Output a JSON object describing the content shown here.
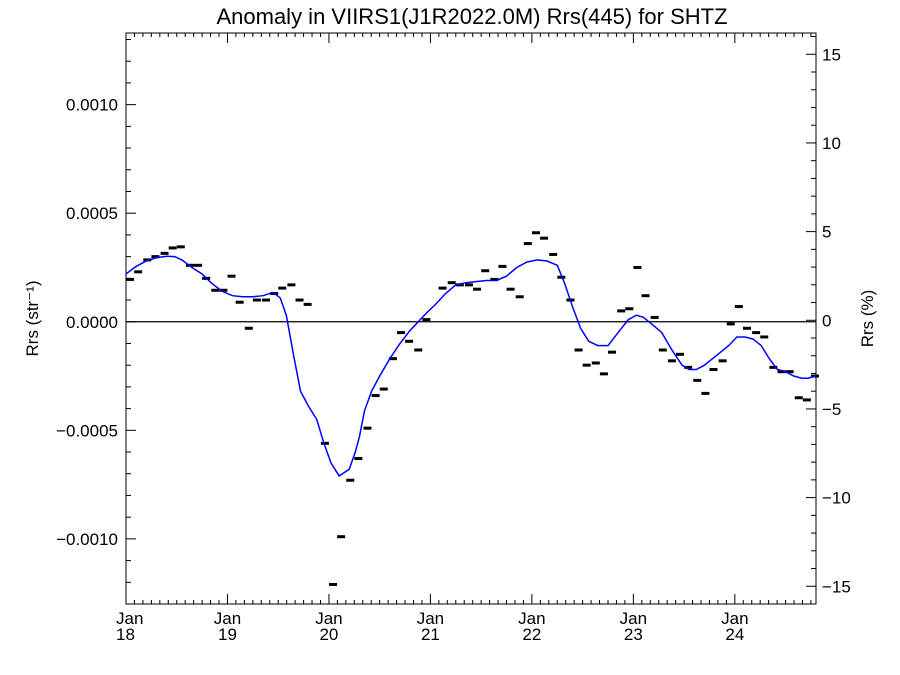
{
  "chart_data": {
    "type": "scatter",
    "title": "Anomaly in VIIRS1(J1R2022.0M) Rrs(445) for SHTZ",
    "ylabel_left": "Rrs (str⁻¹)",
    "ylabel_right": "Rrs (%)",
    "xlabel": "",
    "x_unit": "year",
    "xlim": [
      2018.0,
      2024.8
    ],
    "ylim_left": [
      -0.0013,
      0.00133
    ],
    "ylim_right": [
      -16,
      16.2
    ],
    "x_ticks": [
      {
        "value": 2018,
        "month": "Jan",
        "year": "18"
      },
      {
        "value": 2019,
        "month": "Jan",
        "year": "19"
      },
      {
        "value": 2020,
        "month": "Jan",
        "year": "20"
      },
      {
        "value": 2021,
        "month": "Jan",
        "year": "21"
      },
      {
        "value": 2022,
        "month": "Jan",
        "year": "22"
      },
      {
        "value": 2023,
        "month": "Jan",
        "year": "23"
      },
      {
        "value": 2024,
        "month": "Jan",
        "year": "24"
      }
    ],
    "y_ticks_left": [
      {
        "value": 0.001,
        "label": "0.0010"
      },
      {
        "value": 0.0005,
        "label": "0.0005"
      },
      {
        "value": 0.0,
        "label": "0.0000"
      },
      {
        "value": -0.0005,
        "label": "−0.0005"
      },
      {
        "value": -0.001,
        "label": "−0.0010"
      }
    ],
    "y_ticks_right": [
      {
        "value": 15,
        "label": "15"
      },
      {
        "value": 10,
        "label": "10"
      },
      {
        "value": 5,
        "label": "5"
      },
      {
        "value": 0,
        "label": "0"
      },
      {
        "value": -5,
        "label": "−5"
      },
      {
        "value": -10,
        "label": "−10"
      },
      {
        "value": -15,
        "label": "−15"
      }
    ],
    "zero_line": 0.0,
    "series": [
      {
        "kind": "points",
        "color": "#000000",
        "x": [
          2018.04,
          2018.12,
          2018.21,
          2018.29,
          2018.38,
          2018.46,
          2018.54,
          2018.63,
          2018.71,
          2018.79,
          2018.88,
          2018.96,
          2019.04,
          2019.12,
          2019.21,
          2019.29,
          2019.38,
          2019.46,
          2019.54,
          2019.63,
          2019.71,
          2019.79,
          2019.96,
          2020.04,
          2020.12,
          2020.21,
          2020.29,
          2020.38,
          2020.46,
          2020.54,
          2020.63,
          2020.71,
          2020.79,
          2020.88,
          2020.96,
          2021.12,
          2021.21,
          2021.29,
          2021.38,
          2021.46,
          2021.54,
          2021.63,
          2021.71,
          2021.79,
          2021.88,
          2021.96,
          2022.04,
          2022.12,
          2022.21,
          2022.29,
          2022.38,
          2022.46,
          2022.54,
          2022.63,
          2022.71,
          2022.79,
          2022.88,
          2022.96,
          2023.04,
          2023.12,
          2023.21,
          2023.29,
          2023.38,
          2023.46,
          2023.54,
          2023.63,
          2023.71,
          2023.79,
          2023.88,
          2023.96,
          2024.04,
          2024.12,
          2024.21,
          2024.29,
          2024.38,
          2024.46,
          2024.54,
          2024.63,
          2024.71,
          2024.79
        ],
        "y": [
          0.000195,
          0.00023,
          0.000285,
          0.0003,
          0.000315,
          0.00034,
          0.000345,
          0.00026,
          0.00026,
          0.0002,
          0.000145,
          0.000145,
          0.00021,
          9e-05,
          -3e-05,
          0.0001,
          0.0001,
          0.00013,
          0.000155,
          0.00017,
          0.0001,
          8e-05,
          -0.00056,
          -0.00121,
          -0.00099,
          -0.00073,
          -0.00063,
          -0.00049,
          -0.00034,
          -0.00031,
          -0.00017,
          -5e-05,
          -9e-05,
          -0.00013,
          1e-05,
          0.000155,
          0.00018,
          0.00017,
          0.00017,
          0.00015,
          0.000235,
          0.000195,
          0.000255,
          0.00015,
          0.000115,
          0.00036,
          0.00041,
          0.000385,
          0.00031,
          0.000205,
          0.0001,
          -0.00013,
          -0.0002,
          -0.00019,
          -0.00024,
          -0.00014,
          5e-05,
          6e-05,
          0.00025,
          0.00012,
          2e-05,
          -0.00013,
          -0.00018,
          -0.00015,
          -0.00021,
          -0.00027,
          -0.00033,
          -0.00022,
          -0.00018,
          -1e-05,
          7e-05,
          -3e-05,
          -5e-05,
          -7e-05,
          -0.00021,
          -0.00023,
          -0.00023,
          -0.00035,
          -0.00036,
          -0.00025
        ]
      },
      {
        "kind": "line",
        "color": "#0000ff",
        "x": [
          2018.0,
          2018.1,
          2018.2,
          2018.3,
          2018.4,
          2018.48,
          2018.55,
          2018.65,
          2018.75,
          2018.85,
          2018.95,
          2019.05,
          2019.15,
          2019.25,
          2019.35,
          2019.45,
          2019.52,
          2019.58,
          2019.65,
          2019.72,
          2019.8,
          2019.88,
          2019.95,
          2020.02,
          2020.1,
          2020.2,
          2020.26,
          2020.3,
          2020.35,
          2020.42,
          2020.5,
          2020.6,
          2020.7,
          2020.8,
          2020.88,
          2020.96,
          2021.05,
          2021.15,
          2021.25,
          2021.35,
          2021.45,
          2021.55,
          2021.65,
          2021.75,
          2021.85,
          2021.95,
          2022.05,
          2022.15,
          2022.25,
          2022.32,
          2022.4,
          2022.48,
          2022.56,
          2022.65,
          2022.75,
          2022.85,
          2022.95,
          2023.03,
          2023.1,
          2023.18,
          2023.28,
          2023.38,
          2023.48,
          2023.55,
          2023.62,
          2023.7,
          2023.78,
          2023.86,
          2023.94,
          2024.02,
          2024.1,
          2024.18,
          2024.26,
          2024.34,
          2024.42,
          2024.5,
          2024.58,
          2024.66,
          2024.72,
          2024.8
        ],
        "y": [
          0.00022,
          0.000255,
          0.00028,
          0.000295,
          0.000302,
          0.0003,
          0.000285,
          0.00025,
          0.00022,
          0.000175,
          0.00014,
          0.00012,
          0.000115,
          0.000115,
          0.00012,
          0.000135,
          0.00011,
          3e-05,
          -0.00015,
          -0.00032,
          -0.00039,
          -0.00045,
          -0.00056,
          -0.00065,
          -0.00071,
          -0.00068,
          -0.0006,
          -0.00053,
          -0.00041,
          -0.00032,
          -0.00025,
          -0.00017,
          -0.0001,
          -4e-05,
          0.0,
          4e-05,
          8e-05,
          0.00013,
          0.00017,
          0.00018,
          0.000185,
          0.00019,
          0.00019,
          0.00021,
          0.00025,
          0.000275,
          0.000285,
          0.00028,
          0.00026,
          0.00018,
          7e-05,
          -3e-05,
          -9e-05,
          -0.00011,
          -0.00011,
          -5e-05,
          1e-05,
          3e-05,
          2e-05,
          -1e-05,
          -5e-05,
          -0.00013,
          -0.0002,
          -0.00022,
          -0.00022,
          -0.0002,
          -0.00017,
          -0.00014,
          -0.00011,
          -7e-05,
          -7e-05,
          -8e-05,
          -0.00011,
          -0.00017,
          -0.00022,
          -0.00023,
          -0.00025,
          -0.00026,
          -0.00026,
          -0.00025
        ]
      }
    ]
  }
}
